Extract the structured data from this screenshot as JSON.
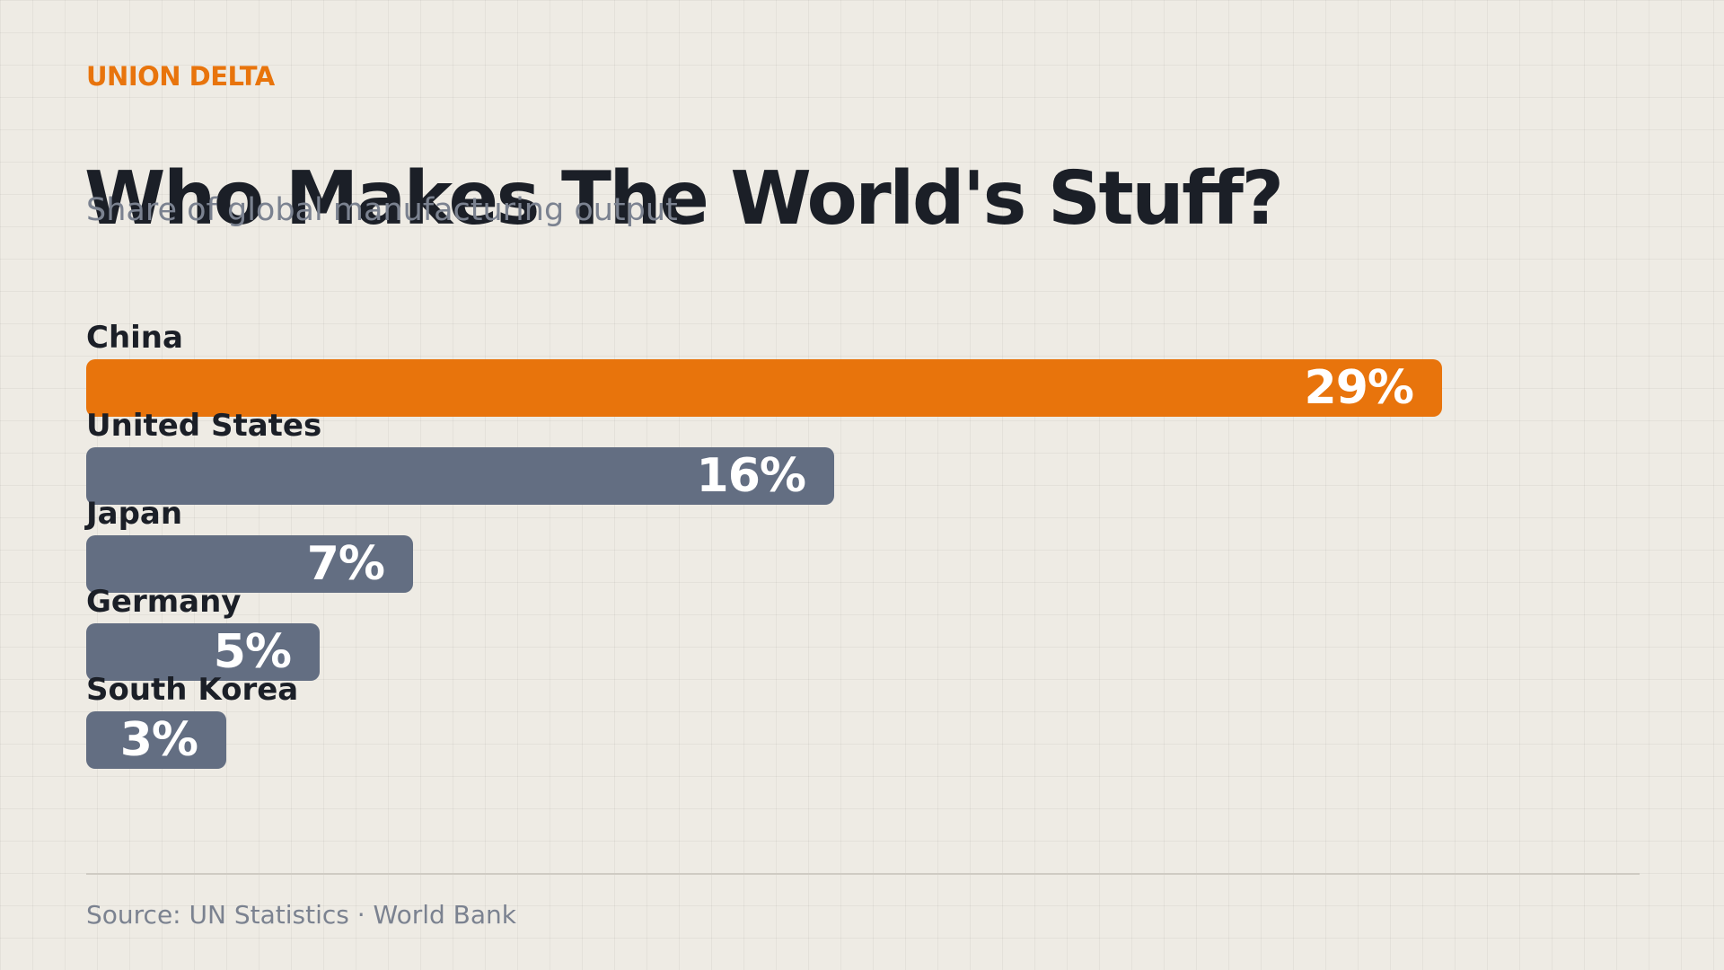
{
  "brand": "UNION DELTA",
  "title": "Who Makes The World's Stuff?",
  "subtitle": "Share of global manufacturing output",
  "source": "Source: UN Statistics · World Bank",
  "colors": {
    "highlight": "#e8740c",
    "bar": "#636e82",
    "background": "#eeebe4"
  },
  "chart_data": {
    "type": "bar",
    "orientation": "horizontal",
    "title": "Who Makes The World's Stuff?",
    "subtitle": "Share of global manufacturing output",
    "categories": [
      "China",
      "United States",
      "Japan",
      "Germany",
      "South Korea"
    ],
    "values": [
      29,
      16,
      7,
      5,
      3
    ],
    "value_labels": [
      "29%",
      "16%",
      "7%",
      "5%",
      "3%"
    ],
    "unit": "%",
    "highlight_index": 0,
    "xlim": [
      0,
      40
    ],
    "grid": false,
    "legend": "none"
  }
}
